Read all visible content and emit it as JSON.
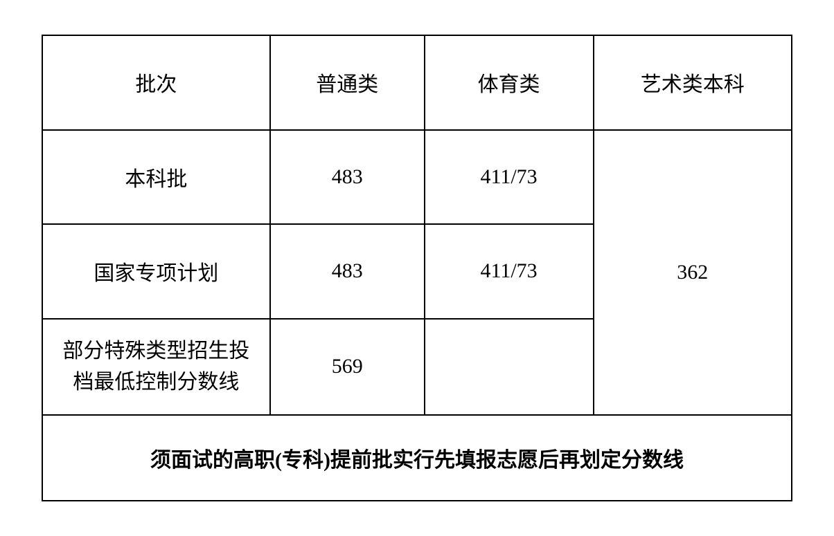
{
  "table": {
    "columns": {
      "batch": "批次",
      "general": "普通类",
      "sports": "体育类",
      "art": "艺术类本科"
    },
    "rows": [
      {
        "batch": "本科批",
        "general": "483",
        "sports": "411/73"
      },
      {
        "batch": "国家专项计划",
        "general": "483",
        "sports": "411/73"
      },
      {
        "batch": "部分特殊类型招生投档最低控制分数线",
        "general": "569",
        "sports": ""
      }
    ],
    "art_merged_value": "362",
    "footer": "须面试的高职(专科)提前批实行先填报志愿后再划定分数线",
    "styling": {
      "border_color": "#000000",
      "border_width": 2,
      "background_color": "#ffffff",
      "text_color": "#000000",
      "font_family": "SimSun",
      "body_fontsize": 30,
      "footer_fontsize": 30,
      "footer_fontweight": "bold",
      "column_widths": {
        "batch": 310,
        "general": 210,
        "sports": 230,
        "art": 270
      },
      "row_heights": {
        "header": 110,
        "body": 110,
        "tall_body": 170,
        "footer": 100
      }
    }
  }
}
